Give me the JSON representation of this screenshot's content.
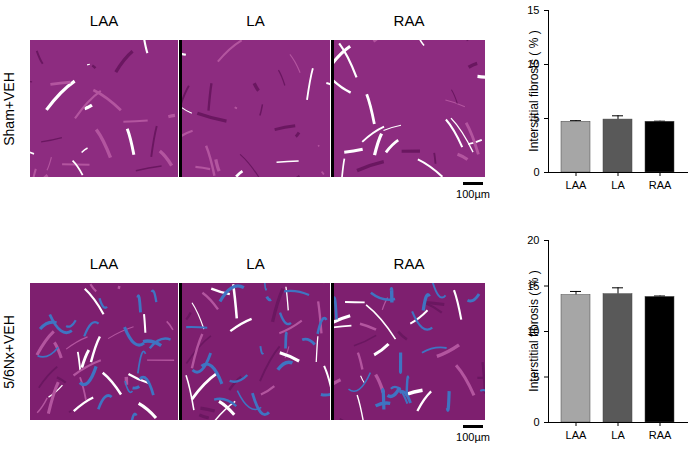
{
  "panels": [
    {
      "row_label": "Sham+VEH",
      "columns": [
        "LAA",
        "LA",
        "RAA"
      ],
      "scale_bar": "100µm"
    },
    {
      "row_label": "5/6Nx+VEH",
      "columns": [
        "LAA",
        "LA",
        "RAA"
      ],
      "scale_bar": "100µm"
    }
  ],
  "chart_data": [
    {
      "type": "bar",
      "ylabel": "Interstitial fibrosis ( % )",
      "categories": [
        "LAA",
        "LA",
        "RAA"
      ],
      "values": [
        4.7,
        4.9,
        4.7
      ],
      "errors": [
        0.1,
        0.35,
        0.05
      ],
      "colors": [
        "#a6a6a6",
        "#595959",
        "#000000"
      ],
      "ylim": [
        0,
        15
      ],
      "yticks": [
        0,
        5,
        10,
        15
      ]
    },
    {
      "type": "bar",
      "ylabel": "Interstitial fibrosis ( % )",
      "categories": [
        "LAA",
        "LA",
        "RAA"
      ],
      "values": [
        14.0,
        14.1,
        13.8
      ],
      "errors": [
        0.4,
        0.7,
        0.1
      ],
      "colors": [
        "#a6a6a6",
        "#595959",
        "#000000"
      ],
      "ylim": [
        0,
        20
      ],
      "yticks": [
        0,
        5,
        10,
        15,
        20
      ]
    }
  ]
}
